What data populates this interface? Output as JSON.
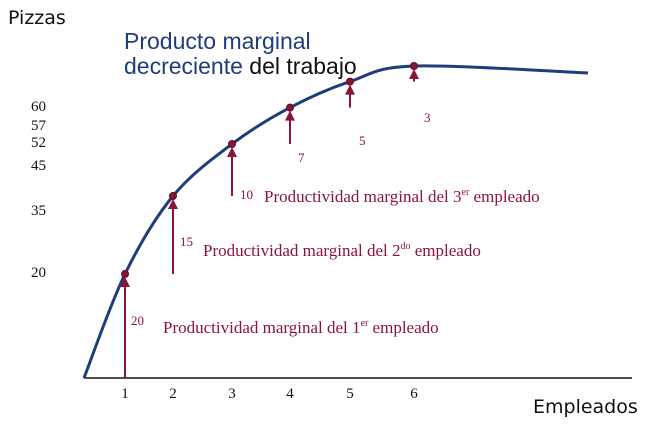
{
  "chart_data": {
    "type": "line",
    "title": {
      "line1": "Producto marginal",
      "line2_colored": "decreciente",
      "line2_rest": " del trabajo"
    },
    "xlabel": "Empleados",
    "ylabel": "Pizzas",
    "x": [
      1,
      2,
      3,
      4,
      5,
      6
    ],
    "y": [
      20,
      35,
      45,
      52,
      57,
      60
    ],
    "x_ticks": [
      "1",
      "2",
      "3",
      "4",
      "5",
      "6"
    ],
    "y_ticks": [
      "20",
      "35",
      "45",
      "52",
      "57",
      "60"
    ],
    "marginal_products": [
      20,
      15,
      10,
      7,
      5,
      3
    ],
    "annotations": [
      {
        "x": 1,
        "value": "20",
        "pre": "Productividad marginal del 1",
        "sup": "er",
        "post": " empleado"
      },
      {
        "x": 2,
        "value": "15",
        "pre": "Productividad marginal del 2",
        "sup": "do",
        "post": " empleado"
      },
      {
        "x": 3,
        "value": "10",
        "pre": "Productividad marginal del 3",
        "sup": "er",
        "post": " empleado"
      },
      {
        "x": 4,
        "value": "7"
      },
      {
        "x": 5,
        "value": "5"
      },
      {
        "x": 6,
        "value": "3"
      }
    ],
    "colors": {
      "curve": "#1f3d7a",
      "title_blue": "#1f3d7a",
      "title_dark": "#111111",
      "accent": "#8b1538",
      "axis": "#111111"
    }
  }
}
